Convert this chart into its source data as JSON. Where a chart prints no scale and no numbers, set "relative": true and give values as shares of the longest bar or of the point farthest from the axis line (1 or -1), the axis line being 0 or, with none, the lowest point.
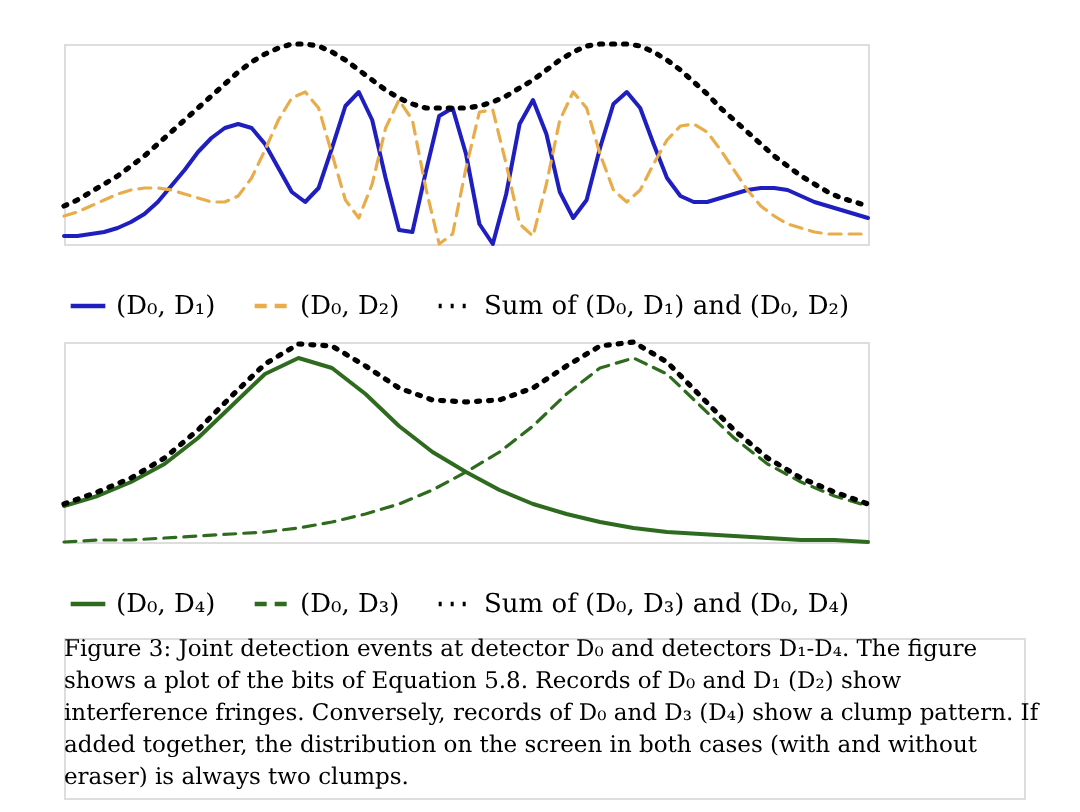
{
  "chart_data": [
    {
      "type": "line",
      "relative": true,
      "legend": "bottom",
      "categories": [
        null,
        null,
        null,
        null,
        null,
        null,
        null,
        null,
        null,
        null,
        null,
        null,
        null,
        null,
        null,
        null,
        null,
        null,
        null,
        null,
        null,
        null,
        null,
        null,
        null,
        null,
        null,
        null,
        null,
        null,
        null,
        null,
        null,
        null,
        null,
        null,
        null,
        null,
        null,
        null,
        null,
        null,
        null,
        null,
        null,
        null,
        null,
        null,
        null,
        null,
        null,
        null,
        null,
        null,
        null,
        null,
        null,
        null,
        null,
        null,
        null
      ],
      "series": [
        {
          "name": "(D₀, D₁)",
          "color": "#1f1fbf",
          "line_style": "solid",
          "values": [
            0.04,
            0.04,
            0.05,
            0.06,
            0.08,
            0.11,
            0.15,
            0.21,
            0.29,
            0.37,
            0.46,
            0.53,
            0.58,
            0.6,
            0.58,
            0.5,
            0.38,
            0.26,
            0.21,
            0.28,
            0.48,
            0.69,
            0.76,
            0.62,
            0.33,
            0.07,
            0.06,
            0.36,
            0.64,
            0.68,
            0.45,
            0.1,
            0.0,
            0.25,
            0.6,
            0.72,
            0.55,
            0.26,
            0.13,
            0.22,
            0.48,
            0.7,
            0.76,
            0.68,
            0.5,
            0.33,
            0.24,
            0.21,
            0.21,
            0.23,
            0.25,
            0.27,
            0.28,
            0.28,
            0.27,
            0.24,
            0.21,
            0.19,
            0.17,
            0.15,
            0.13
          ]
        },
        {
          "name": "(D₀, D₂)",
          "color": "#e8ad4a",
          "line_style": "dashed",
          "values": [
            0.14,
            0.16,
            0.19,
            0.22,
            0.25,
            0.27,
            0.28,
            0.28,
            0.27,
            0.25,
            0.23,
            0.21,
            0.21,
            0.24,
            0.33,
            0.47,
            0.62,
            0.73,
            0.76,
            0.68,
            0.45,
            0.22,
            0.13,
            0.3,
            0.58,
            0.72,
            0.62,
            0.28,
            0.0,
            0.05,
            0.38,
            0.66,
            0.67,
            0.4,
            0.1,
            0.04,
            0.3,
            0.62,
            0.76,
            0.68,
            0.45,
            0.27,
            0.21,
            0.27,
            0.4,
            0.52,
            0.59,
            0.6,
            0.56,
            0.47,
            0.37,
            0.27,
            0.19,
            0.14,
            0.1,
            0.08,
            0.06,
            0.05,
            0.05,
            0.05,
            0.05
          ]
        },
        {
          "name": "Sum of (D₀, D₁) and (D₀, D₂)",
          "color": "#000000",
          "line_style": "dotted",
          "values": [
            0.19,
            0.22,
            0.26,
            0.3,
            0.34,
            0.39,
            0.44,
            0.5,
            0.56,
            0.62,
            0.68,
            0.74,
            0.8,
            0.86,
            0.91,
            0.95,
            0.98,
            1.0,
            1.0,
            0.99,
            0.96,
            0.92,
            0.87,
            0.82,
            0.77,
            0.73,
            0.7,
            0.68,
            0.68,
            0.68,
            0.68,
            0.69,
            0.71,
            0.74,
            0.78,
            0.82,
            0.87,
            0.92,
            0.96,
            0.99,
            1.0,
            1.0,
            1.0,
            0.99,
            0.96,
            0.92,
            0.87,
            0.81,
            0.75,
            0.68,
            0.62,
            0.56,
            0.5,
            0.44,
            0.39,
            0.34,
            0.3,
            0.26,
            0.23,
            0.21,
            0.19
          ]
        }
      ]
    },
    {
      "type": "line",
      "relative": true,
      "legend": "bottom",
      "categories": [
        null,
        null,
        null,
        null,
        null,
        null,
        null,
        null,
        null,
        null,
        null,
        null,
        null,
        null,
        null,
        null,
        null,
        null,
        null,
        null,
        null,
        null,
        null,
        null,
        null
      ],
      "series": [
        {
          "name": "(D₀, D₄)",
          "color": "#2e6b1e",
          "line_style": "solid",
          "values": [
            0.18,
            0.23,
            0.3,
            0.39,
            0.52,
            0.68,
            0.84,
            0.92,
            0.87,
            0.74,
            0.58,
            0.45,
            0.35,
            0.26,
            0.19,
            0.14,
            0.1,
            0.07,
            0.05,
            0.04,
            0.03,
            0.02,
            0.01,
            0.01,
            0.0
          ]
        },
        {
          "name": "(D₀, D₃)",
          "color": "#2e6b1e",
          "line_style": "dashed",
          "values": [
            0.0,
            0.01,
            0.01,
            0.02,
            0.03,
            0.04,
            0.05,
            0.07,
            0.1,
            0.14,
            0.19,
            0.26,
            0.35,
            0.45,
            0.58,
            0.74,
            0.87,
            0.92,
            0.84,
            0.68,
            0.52,
            0.39,
            0.3,
            0.23,
            0.18
          ]
        },
        {
          "name": "Sum of (D₀, D₃) and (D₀, D₄)",
          "color": "#000000",
          "line_style": "dotted",
          "values": [
            0.19,
            0.25,
            0.32,
            0.42,
            0.56,
            0.73,
            0.89,
            0.99,
            0.98,
            0.88,
            0.77,
            0.71,
            0.7,
            0.71,
            0.77,
            0.88,
            0.98,
            1.0,
            0.9,
            0.73,
            0.56,
            0.42,
            0.32,
            0.25,
            0.19
          ]
        }
      ],
      "annotations": [
        "Figure 3: Joint detection events at detector D₀ and detectors D₁-D₄. The figure shows a plot of the bits of Equation 5.8. Records of D₀ and D₁ (D₂) show interference fringes. Conversely, records of D₀ and D₃ (D₄) show a clump pattern. If added together, the distribution on the screen in both cases (with and without eraser) is always two clumps."
      ]
    }
  ]
}
